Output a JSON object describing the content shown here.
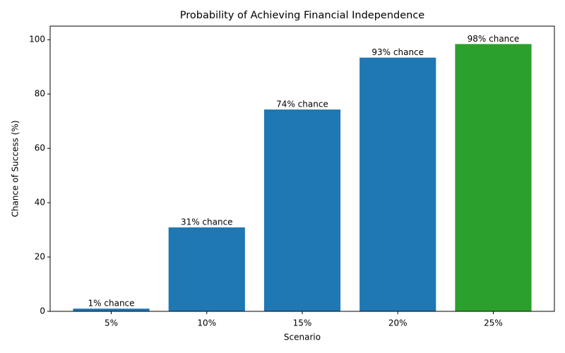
{
  "chart_data": {
    "type": "bar",
    "title": "Probability of Achieving Financial Independence",
    "x_label": "Scenario",
    "y_label": "Chance of Success (%)",
    "categories": [
      "5%",
      "10%",
      "15%",
      "20%",
      "25%"
    ],
    "values": [
      1.0,
      30.9,
      74.3,
      93.4,
      98.4
    ],
    "value_labels": [
      "1% chance",
      "31% chance",
      "74% chance",
      "93% chance",
      "98% chance"
    ],
    "colors": [
      "#1f77b4",
      "#1f77b4",
      "#1f77b4",
      "#1f77b4",
      "#2ca02c"
    ],
    "ylim": [
      0,
      105
    ],
    "yticks": [
      0,
      20,
      40,
      60,
      80,
      100
    ],
    "grid": false
  }
}
